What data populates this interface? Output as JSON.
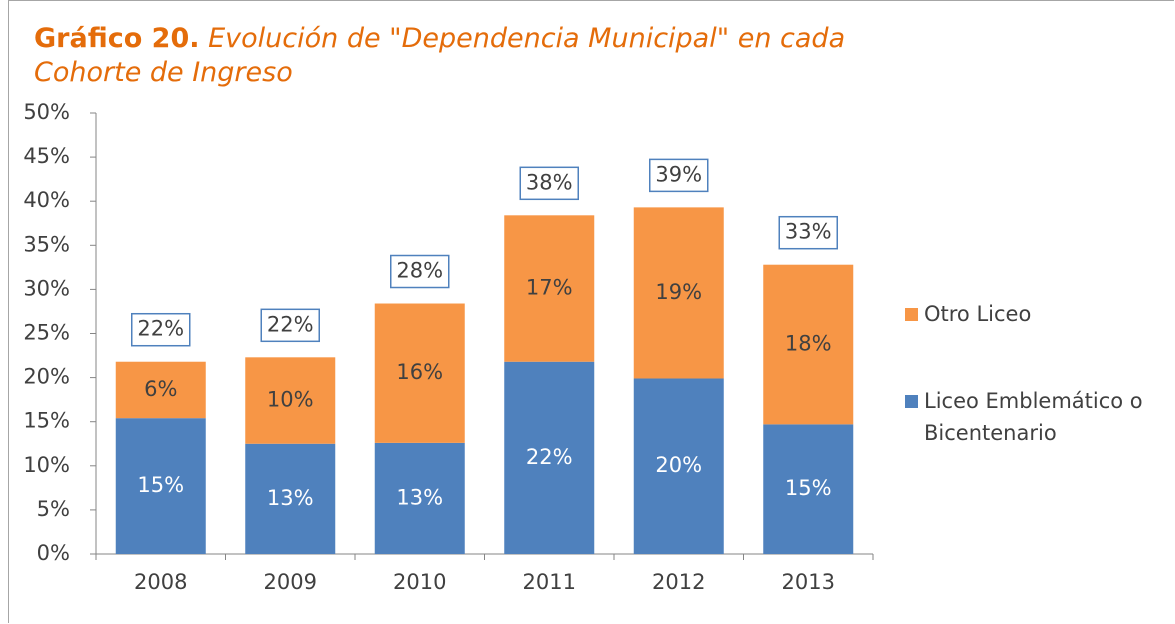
{
  "chart_data": {
    "type": "stacked_bar",
    "title": "Gráfico 20.",
    "subtitle": "Evolución de \"Dependencia Municipal\" en cada Cohorte de Ingreso",
    "categories": [
      "2008",
      "2009",
      "2010",
      "2011",
      "2012",
      "2013"
    ],
    "series": [
      {
        "name": "Liceo Emblemático o Bicentenario",
        "color": "#4f81bd",
        "values": [
          15.4,
          12.5,
          12.6,
          21.8,
          19.9,
          14.7
        ],
        "value_labels": [
          "15%",
          "13%",
          "13%",
          "22%",
          "20%",
          "15%"
        ]
      },
      {
        "name": "Otro Liceo",
        "color": "#f79646",
        "values": [
          6.4,
          9.8,
          15.8,
          16.6,
          19.4,
          18.1
        ],
        "value_labels": [
          "6%",
          "10%",
          "16%",
          "17%",
          "19%",
          "18%"
        ]
      }
    ],
    "total_labels": [
      "22%",
      "22%",
      "28%",
      "38%",
      "39%",
      "33%"
    ],
    "ylim": [
      0,
      50
    ],
    "yticks": [
      {
        "value": 0,
        "label": "0%"
      },
      {
        "value": 5,
        "label": "5%"
      },
      {
        "value": 10,
        "label": "10%"
      },
      {
        "value": 15,
        "label": "15%"
      },
      {
        "value": 20,
        "label": "20%"
      },
      {
        "value": 25,
        "label": "25%"
      },
      {
        "value": 30,
        "label": "30%"
      },
      {
        "value": 35,
        "label": "35%"
      },
      {
        "value": 40,
        "label": "40%"
      },
      {
        "value": 45,
        "label": "45%"
      },
      {
        "value": 50,
        "label": "50%"
      }
    ],
    "legend": "right"
  }
}
